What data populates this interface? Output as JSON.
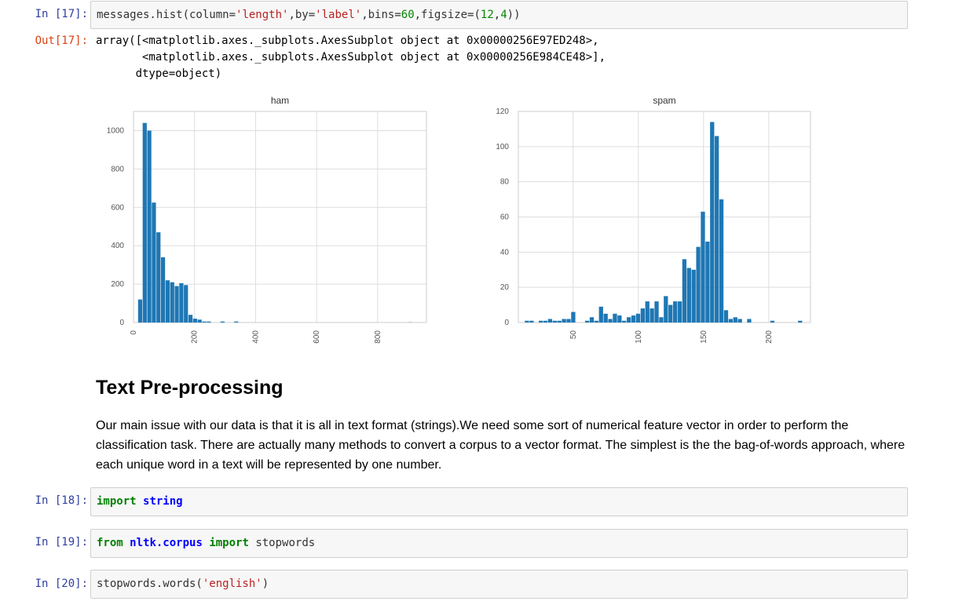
{
  "cells": {
    "c17": {
      "prompt_in": "In [17]:",
      "prompt_out": "Out[17]:",
      "code": {
        "p1": "messages.hist(column=",
        "s1": "'length'",
        "p2": ",by=",
        "s2": "'label'",
        "p3": ",bins=",
        "n1": "60",
        "p4": ",figsize=(",
        "n2": "12",
        "p5": ",",
        "n3": "4",
        "p6": "))"
      },
      "output_lines": [
        "array([<matplotlib.axes._subplots.AxesSubplot object at 0x00000256E97ED248>,",
        "       <matplotlib.axes._subplots.AxesSubplot object at 0x00000256E984CE48>],",
        "      dtype=object)"
      ]
    },
    "c18": {
      "prompt": "In [18]:",
      "kw": "import",
      "mod": "string"
    },
    "c19": {
      "prompt": "In [19]:",
      "kw1": "from",
      "mod": "nltk.corpus",
      "kw2": "import",
      "rest": " stopwords"
    },
    "c20": {
      "prompt": "In [20]:",
      "p1": "stopwords.words(",
      "s1": "'english'",
      "p2": ")"
    }
  },
  "markdown": {
    "heading": "Text Pre-processing",
    "paragraph": "Our main issue with our data is that it is all in text format (strings).We need some sort of numerical feature vector in order to perform the classification task. There are actually many methods to convert a corpus to a vector format. The simplest is the the bag-of-words approach, where each unique word in a text will be represented by one number."
  },
  "colors": {
    "bar": "#1f77b4",
    "grid": "#dddddd",
    "prompt_in": "#303f9f",
    "prompt_out": "#d84315"
  },
  "chart_data": [
    {
      "type": "bar",
      "title": "ham",
      "xlabel": "",
      "ylabel": "",
      "xlim": [
        0,
        960
      ],
      "ylim": [
        0,
        1100
      ],
      "xticks": [
        0,
        200,
        400,
        600,
        800
      ],
      "yticks": [
        0,
        200,
        400,
        600,
        800,
        1000
      ],
      "bin_start": 15,
      "bin_width": 15,
      "grid": true,
      "values": [
        120,
        1040,
        1000,
        625,
        470,
        340,
        220,
        210,
        190,
        205,
        195,
        40,
        20,
        15,
        5,
        5,
        0,
        0,
        5,
        0,
        0,
        5,
        0,
        0,
        0,
        0,
        0,
        0,
        0,
        0,
        0,
        0,
        0,
        0,
        0,
        0,
        0,
        0,
        0,
        0,
        0,
        0,
        0,
        0,
        0,
        0,
        0,
        0,
        0,
        0,
        0,
        0,
        0,
        0,
        0,
        0,
        0,
        0,
        0,
        1
      ]
    },
    {
      "type": "bar",
      "title": "spam",
      "xlabel": "",
      "ylabel": "",
      "xlim": [
        8,
        232
      ],
      "ylim": [
        0,
        120
      ],
      "xticks": [
        50,
        100,
        150,
        200
      ],
      "yticks": [
        0,
        20,
        40,
        60,
        80,
        100,
        120
      ],
      "bin_start": 13,
      "bin_width": 3.55,
      "grid": true,
      "values": [
        1,
        1,
        0,
        1,
        1,
        2,
        1,
        1,
        2,
        2,
        6,
        0,
        0,
        1,
        3,
        1,
        9,
        5,
        2,
        5,
        4,
        1,
        3,
        4,
        5,
        8,
        12,
        8,
        12,
        3,
        15,
        10,
        12,
        12,
        36,
        31,
        30,
        43,
        63,
        46,
        114,
        106,
        70,
        7,
        2,
        3,
        2,
        0,
        2,
        0,
        0,
        0,
        0,
        1,
        0,
        0,
        0,
        0,
        0,
        1
      ]
    }
  ]
}
